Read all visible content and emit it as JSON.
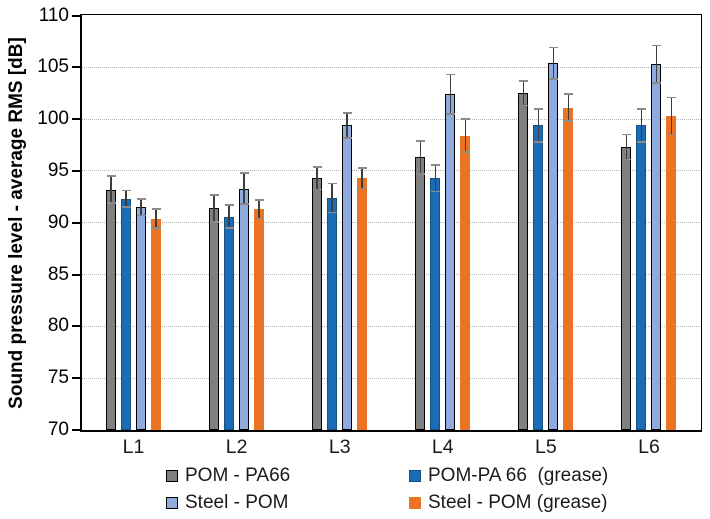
{
  "chart_data": {
    "type": "bar",
    "title": "",
    "xlabel": "",
    "ylabel": "Sound pressure level - average RMS [dB]",
    "ylim": [
      70,
      110
    ],
    "yticks": [
      70,
      75,
      80,
      85,
      90,
      95,
      100,
      105,
      110
    ],
    "grid": "horizontal dotted lines at 75-105",
    "legend_position": "bottom, 2 columns",
    "error_bars": true,
    "categories": [
      "L1",
      "L2",
      "L3",
      "L4",
      "L5",
      "L6"
    ],
    "series": [
      {
        "name": "POM - PA66",
        "color": "#808080",
        "border": "#000000",
        "values": [
          93.2,
          91.4,
          94.3,
          96.3,
          102.5,
          97.3
        ],
        "errors": [
          1.3,
          1.3,
          1.1,
          1.6,
          1.2,
          1.2
        ]
      },
      {
        "name": "POM-PA 66  (grease)",
        "color": "#1b6cb5",
        "border": "#14537f",
        "values": [
          92.3,
          90.6,
          92.4,
          94.3,
          99.4,
          99.4
        ],
        "errors": [
          0.8,
          1.1,
          1.4,
          1.3,
          1.6,
          1.6
        ]
      },
      {
        "name": "Steel - POM",
        "color": "#8faadc",
        "border": "#000000",
        "values": [
          91.5,
          93.3,
          99.4,
          102.4,
          105.4,
          105.3
        ],
        "errors": [
          0.8,
          1.5,
          1.2,
          1.9,
          1.5,
          1.8
        ]
      },
      {
        "name": "Steel - POM (grease)",
        "color": "#ea7423",
        "border": "#ea7423",
        "values": [
          90.4,
          91.3,
          94.3,
          98.4,
          101.1,
          100.3
        ],
        "errors": [
          0.9,
          0.9,
          1.0,
          1.6,
          1.3,
          1.8
        ]
      }
    ],
    "style_colors": {
      "gridline": "#b5b5b5",
      "axis": "#000000",
      "errorbar_line": "#3d3d3d",
      "errorbar_cap": "#8a8a8a",
      "background": "#ffffff"
    }
  }
}
